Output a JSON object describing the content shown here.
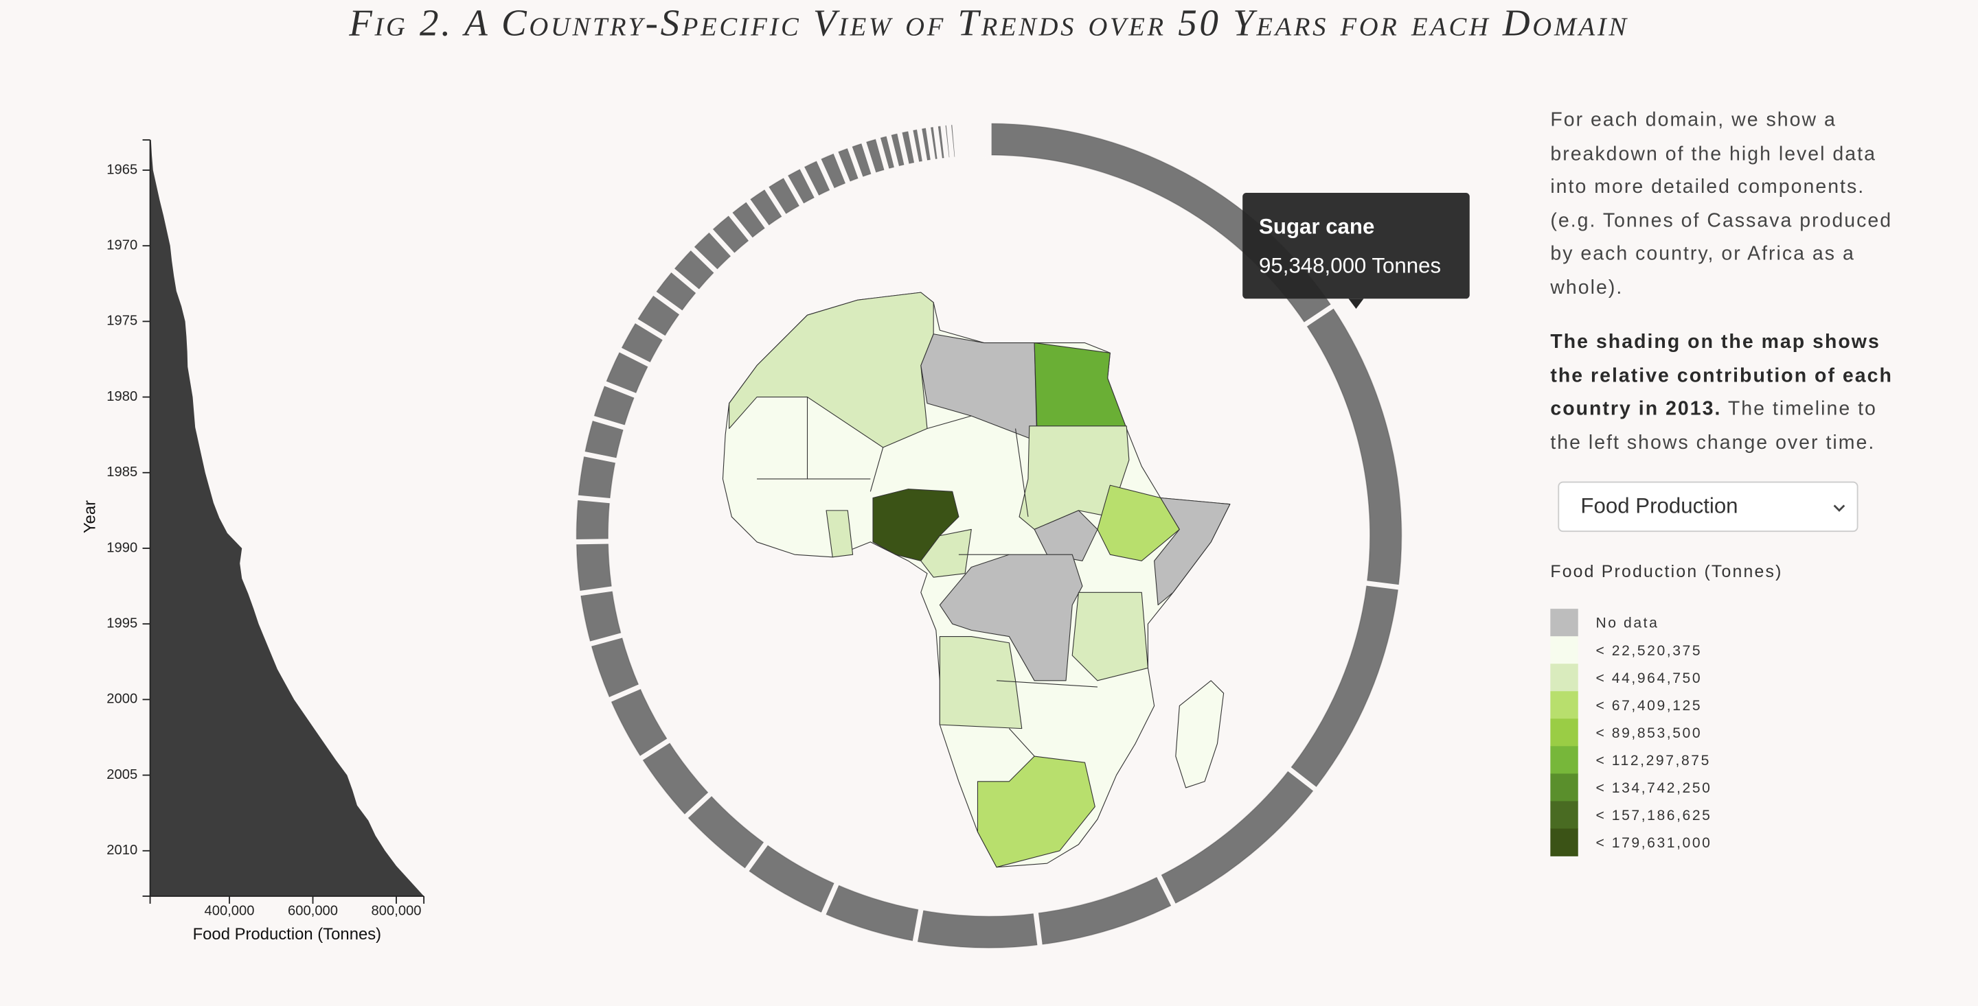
{
  "title": "Fig 2. A Country-Specific View of Trends over 50 Years for each Domain",
  "chart_data": [
    {
      "type": "area",
      "orientation": "vertical",
      "x_label": "Year",
      "y_label": "Food Production (Tonnes)",
      "color": "#3d3d3d",
      "x": [
        1963,
        1964,
        1965,
        1966,
        1967,
        1968,
        1969,
        1970,
        1971,
        1972,
        1973,
        1974,
        1975,
        1976,
        1977,
        1978,
        1979,
        1980,
        1981,
        1982,
        1983,
        1984,
        1985,
        1986,
        1987,
        1988,
        1989,
        1990,
        1991,
        1992,
        1993,
        1994,
        1995,
        1996,
        1997,
        1998,
        1999,
        2000,
        2001,
        2002,
        2003,
        2004,
        2005,
        2006,
        2007,
        2008,
        2009,
        2010,
        2011,
        2012,
        2013
      ],
      "values": [
        212000,
        214000,
        217000,
        225000,
        233000,
        242000,
        250000,
        258000,
        262000,
        267000,
        273000,
        285000,
        294000,
        297000,
        299000,
        300000,
        306000,
        312000,
        315000,
        318000,
        326000,
        334000,
        342000,
        352000,
        362000,
        376000,
        395000,
        430000,
        425000,
        430000,
        445000,
        458000,
        470000,
        485000,
        500000,
        515000,
        535000,
        555000,
        580000,
        605000,
        630000,
        655000,
        682000,
        695000,
        706000,
        733000,
        750000,
        773000,
        800000,
        833000,
        866000
      ],
      "xlim": [
        1963,
        2013
      ],
      "xticks": [
        1965,
        1970,
        1975,
        1980,
        1985,
        1990,
        1995,
        2000,
        2005,
        2010
      ],
      "ylim": [
        210000,
        866000
      ],
      "yticks": [
        {
          "value": 400000,
          "label": "400,000"
        },
        {
          "value": 600000,
          "label": "600,000"
        },
        {
          "value": 800000,
          "label": "800,000"
        }
      ]
    },
    {
      "type": "donut",
      "color": "#777777",
      "categories": [
        null,
        "Sugar cane",
        null,
        null,
        null,
        null,
        null,
        null,
        null,
        null,
        null,
        null,
        null,
        null,
        null,
        null,
        null,
        null,
        null,
        null,
        null,
        null,
        null,
        null,
        null,
        null,
        null,
        null,
        null,
        null,
        null,
        null,
        null,
        null,
        null,
        null,
        null,
        null,
        null,
        null,
        null,
        null,
        null,
        null,
        null,
        null,
        null,
        null,
        null,
        null,
        null,
        null,
        null,
        null,
        null,
        null
      ],
      "values": [
        131000000,
        95348000,
        71500000,
        59600000,
        45300000,
        40500000,
        31000000,
        28600000,
        26200000,
        23800000,
        21500000,
        19100000,
        16700000,
        16700000,
        14300000,
        14300000,
        11900000,
        11900000,
        11900000,
        10700000,
        10700000,
        9500000,
        9500000,
        8300000,
        8300000,
        7200000,
        7200000,
        7200000,
        6000000,
        6000000,
        6000000,
        4800000,
        4800000,
        4800000,
        3600000,
        3600000,
        3600000,
        2900000,
        2900000,
        2400000,
        2400000,
        1900000,
        1900000,
        1400000,
        1400000,
        1200000,
        1200000,
        950000,
        950000,
        700000,
        700000,
        700000,
        480000,
        480000,
        480000,
        480000
      ],
      "value_labels": [
        null,
        "95,348,000 Tonnes",
        null,
        null,
        null,
        null,
        null,
        null,
        null,
        null,
        null,
        null,
        null,
        null,
        null,
        null,
        null,
        null,
        null,
        null,
        null,
        null,
        null,
        null,
        null,
        null,
        null,
        null,
        null,
        null,
        null,
        null,
        null,
        null,
        null,
        null,
        null,
        null,
        null,
        null,
        null,
        null,
        null,
        null,
        null,
        null,
        null,
        null,
        null,
        null,
        null,
        null,
        null,
        null,
        null,
        null
      ]
    }
  ],
  "description": {
    "paragraph_1": "For each domain, we show a breakdown of the high level data into more detailed components. (e.g. Tonnes of Cassava produced by each country, or Africa as a whole).",
    "paragraph_2_bold": "The shading on the map shows the relative contribution of each country in 2013.",
    "paragraph_2_rest": "The timeline to the left shows change over time."
  },
  "domain_select": "Food Production",
  "legend": {
    "title": "Food Production (Tonnes)",
    "items": [
      {
        "label": "No data",
        "color": "#bdbdbd"
      },
      {
        "label": "< 22,520,375",
        "color": "#f7fcee"
      },
      {
        "label": "< 44,964,750",
        "color": "#d9ebbd"
      },
      {
        "label": "< 67,409,125",
        "color": "#b8df6d"
      },
      {
        "label": "< 89,853,500",
        "color": "#9acd45"
      },
      {
        "label": "< 112,297,875",
        "color": "#77b73a"
      },
      {
        "label": "< 134,742,250",
        "color": "#5a8f2c"
      },
      {
        "label": "< 157,186,625",
        "color": "#496b22"
      },
      {
        "label": "< 179,631,000",
        "color": "#3b5316"
      }
    ]
  }
}
